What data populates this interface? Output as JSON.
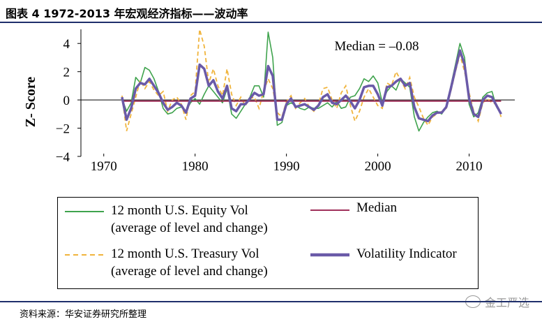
{
  "title": "图表 4 1972-2013 年宏观经济指标——波动率",
  "source": "资料来源：华安证券研究所整理",
  "watermark": "金工严选",
  "colors": {
    "equity": "#3fa34d",
    "treasury": "#f0b43c",
    "median": "#a0305a",
    "indicator": "#6a5aa8",
    "rule": "#1f2f6b"
  },
  "chart_data": {
    "type": "line",
    "title": "1972-2013 年宏观经济指标——波动率",
    "xlabel": "",
    "ylabel": "Z- Score",
    "xlim": [
      1967.5,
      2015
    ],
    "ylim": [
      -4,
      5
    ],
    "xticks": [
      1970,
      1980,
      1990,
      2000,
      2010
    ],
    "yticks": [
      -4,
      -2,
      0,
      2,
      4
    ],
    "ytick_labels": [
      "−4",
      "−2",
      "0",
      "2",
      "4"
    ],
    "annotation": "Median = –0.08",
    "median_value": -0.08,
    "series": [
      {
        "name": "12 month U.S. Equity Vol (average of level and change)",
        "style": "solid-thin",
        "points": [
          [
            1972,
            0.1
          ],
          [
            1972.5,
            -0.8
          ],
          [
            1973,
            -0.2
          ],
          [
            1973.5,
            1.6
          ],
          [
            1974,
            1.2
          ],
          [
            1974.5,
            2.3
          ],
          [
            1975,
            2.1
          ],
          [
            1975.5,
            1.5
          ],
          [
            1976,
            0.6
          ],
          [
            1976.5,
            -0.6
          ],
          [
            1977,
            -1.0
          ],
          [
            1977.5,
            -0.9
          ],
          [
            1978,
            -0.6
          ],
          [
            1978.5,
            -0.5
          ],
          [
            1979,
            -0.8
          ],
          [
            1979.5,
            -0.2
          ],
          [
            1980,
            0.1
          ],
          [
            1980.5,
            -0.3
          ],
          [
            1981,
            0.4
          ],
          [
            1981.5,
            1.0
          ],
          [
            1982,
            0.6
          ],
          [
            1982.5,
            0.2
          ],
          [
            1983,
            -0.2
          ],
          [
            1983.5,
            0.8
          ],
          [
            1984,
            -1.0
          ],
          [
            1984.5,
            -1.3
          ],
          [
            1985,
            -0.8
          ],
          [
            1985.5,
            -0.3
          ],
          [
            1986,
            0.2
          ],
          [
            1986.5,
            1.0
          ],
          [
            1987,
            1.0
          ],
          [
            1987.5,
            0.2
          ],
          [
            1988,
            4.8
          ],
          [
            1988.5,
            3.0
          ],
          [
            1989,
            -1.8
          ],
          [
            1989.5,
            -1.6
          ],
          [
            1990,
            -0.4
          ],
          [
            1990.5,
            -0.2
          ],
          [
            1991,
            -0.4
          ],
          [
            1991.5,
            -0.6
          ],
          [
            1992,
            -0.7
          ],
          [
            1992.5,
            -0.5
          ],
          [
            1993,
            -0.6
          ],
          [
            1993.5,
            -0.6
          ],
          [
            1994,
            -0.4
          ],
          [
            1994.5,
            -0.2
          ],
          [
            1995,
            -0.5
          ],
          [
            1995.5,
            -0.1
          ],
          [
            1996,
            -0.6
          ],
          [
            1996.5,
            -0.5
          ],
          [
            1997,
            0.2
          ],
          [
            1997.5,
            0.3
          ],
          [
            1998,
            0.8
          ],
          [
            1998.5,
            1.5
          ],
          [
            1999,
            1.3
          ],
          [
            1999.5,
            1.7
          ],
          [
            2000,
            1.2
          ],
          [
            2000.5,
            -0.2
          ],
          [
            2001,
            0.6
          ],
          [
            2001.5,
            1.0
          ],
          [
            2002,
            0.7
          ],
          [
            2002.5,
            1.5
          ],
          [
            2003,
            1.2
          ],
          [
            2003.5,
            0.9
          ],
          [
            2004,
            -1.2
          ],
          [
            2004.5,
            -2.2
          ],
          [
            2005,
            -1.6
          ],
          [
            2005.5,
            -1.2
          ],
          [
            2006,
            -0.9
          ],
          [
            2006.5,
            -0.8
          ],
          [
            2007,
            -1.0
          ],
          [
            2007.5,
            -0.5
          ],
          [
            2008,
            1.0
          ],
          [
            2008.5,
            2.5
          ],
          [
            2009,
            4.0
          ],
          [
            2009.5,
            3.0
          ],
          [
            2010,
            -0.3
          ],
          [
            2010.5,
            -1.2
          ],
          [
            2011,
            -0.9
          ],
          [
            2011.5,
            0.2
          ],
          [
            2012,
            0.5
          ],
          [
            2012.5,
            0.6
          ],
          [
            2013,
            -0.5
          ],
          [
            2013.5,
            -1.0
          ]
        ]
      },
      {
        "name": "12 month U.S. Treasury Vol (average of level and change)",
        "style": "dashed",
        "points": [
          [
            1972,
            0.3
          ],
          [
            1972.5,
            -2.2
          ],
          [
            1973,
            -1.0
          ],
          [
            1973.5,
            0.2
          ],
          [
            1974,
            1.4
          ],
          [
            1974.5,
            0.8
          ],
          [
            1975,
            1.3
          ],
          [
            1975.5,
            0.7
          ],
          [
            1976,
            0.3
          ],
          [
            1976.5,
            0.6
          ],
          [
            1977,
            -0.8
          ],
          [
            1977.5,
            0.0
          ],
          [
            1978,
            0.2
          ],
          [
            1978.5,
            -0.3
          ],
          [
            1979,
            -1.4
          ],
          [
            1979.5,
            0.3
          ],
          [
            1980,
            0.6
          ],
          [
            1980.5,
            5.0
          ],
          [
            1981,
            3.8
          ],
          [
            1981.5,
            1.2
          ],
          [
            1982,
            2.2
          ],
          [
            1982.5,
            1.0
          ],
          [
            1983,
            0.3
          ],
          [
            1983.5,
            2.2
          ],
          [
            1984,
            0.4
          ],
          [
            1984.5,
            -0.4
          ],
          [
            1985,
            0.2
          ],
          [
            1985.5,
            -0.4
          ],
          [
            1986,
            0.1
          ],
          [
            1986.5,
            0.2
          ],
          [
            1987,
            -0.6
          ],
          [
            1987.5,
            0.6
          ],
          [
            1988,
            1.5
          ],
          [
            1988.5,
            0.8
          ],
          [
            1989,
            -0.9
          ],
          [
            1989.5,
            -1.2
          ],
          [
            1990,
            -0.1
          ],
          [
            1990.5,
            0.3
          ],
          [
            1991,
            -0.6
          ],
          [
            1991.5,
            -0.2
          ],
          [
            1992,
            0.1
          ],
          [
            1992.5,
            -0.5
          ],
          [
            1993,
            -0.8
          ],
          [
            1993.5,
            -0.3
          ],
          [
            1994,
            0.8
          ],
          [
            1994.5,
            0.9
          ],
          [
            1995,
            0.0
          ],
          [
            1995.5,
            -0.6
          ],
          [
            1996,
            0.5
          ],
          [
            1996.5,
            1.0
          ],
          [
            1997,
            -0.4
          ],
          [
            1997.5,
            -1.5
          ],
          [
            1998,
            -0.8
          ],
          [
            1998.5,
            0.2
          ],
          [
            1999,
            0.8
          ],
          [
            1999.5,
            0.2
          ],
          [
            2000,
            -0.4
          ],
          [
            2000.5,
            -0.6
          ],
          [
            2001,
            1.2
          ],
          [
            2001.5,
            1.0
          ],
          [
            2002,
            2.0
          ],
          [
            2002.5,
            1.4
          ],
          [
            2003,
            0.8
          ],
          [
            2003.5,
            1.6
          ],
          [
            2004,
            0.2
          ],
          [
            2004.5,
            -0.5
          ],
          [
            2005,
            -1.3
          ],
          [
            2005.5,
            -1.8
          ],
          [
            2006,
            -1.2
          ],
          [
            2006.5,
            -1.0
          ],
          [
            2007,
            -0.8
          ],
          [
            2007.5,
            -0.6
          ],
          [
            2008,
            0.6
          ],
          [
            2008.5,
            2.0
          ],
          [
            2009,
            3.2
          ],
          [
            2009.5,
            2.0
          ],
          [
            2010,
            0.5
          ],
          [
            2010.5,
            -0.8
          ],
          [
            2011,
            -1.5
          ],
          [
            2011.5,
            -0.2
          ],
          [
            2012,
            0.1
          ],
          [
            2012.5,
            -0.2
          ],
          [
            2013,
            -0.3
          ],
          [
            2013.5,
            -1.2
          ]
        ]
      },
      {
        "name": "Median",
        "style": "median",
        "points": [
          [
            1972,
            -0.08
          ],
          [
            2013.5,
            -0.08
          ]
        ]
      },
      {
        "name": "Volatility Indicator",
        "style": "solid-thick",
        "points": [
          [
            1972,
            0.2
          ],
          [
            1972.5,
            -1.4
          ],
          [
            1973,
            -0.6
          ],
          [
            1973.5,
            0.8
          ],
          [
            1974,
            1.2
          ],
          [
            1974.5,
            1.1
          ],
          [
            1975,
            1.5
          ],
          [
            1975.5,
            1.0
          ],
          [
            1976,
            0.5
          ],
          [
            1976.5,
            -0.2
          ],
          [
            1977,
            -0.7
          ],
          [
            1977.5,
            -0.5
          ],
          [
            1978,
            -0.2
          ],
          [
            1978.5,
            -0.4
          ],
          [
            1979,
            -0.9
          ],
          [
            1979.5,
            0.1
          ],
          [
            1980,
            0.3
          ],
          [
            1980.5,
            2.5
          ],
          [
            1981,
            2.2
          ],
          [
            1981.5,
            1.0
          ],
          [
            1982,
            1.4
          ],
          [
            1982.5,
            0.6
          ],
          [
            1983,
            0.1
          ],
          [
            1983.5,
            1.0
          ],
          [
            1984,
            -0.6
          ],
          [
            1984.5,
            -0.8
          ],
          [
            1985,
            -0.3
          ],
          [
            1985.5,
            -0.3
          ],
          [
            1986,
            0.1
          ],
          [
            1986.5,
            0.5
          ],
          [
            1987,
            0.3
          ],
          [
            1987.5,
            0.4
          ],
          [
            1988,
            2.4
          ],
          [
            1988.5,
            1.7
          ],
          [
            1989,
            -1.4
          ],
          [
            1989.5,
            -1.4
          ],
          [
            1990,
            -0.3
          ],
          [
            1990.5,
            0.1
          ],
          [
            1991,
            -0.5
          ],
          [
            1991.5,
            -0.4
          ],
          [
            1992,
            -0.3
          ],
          [
            1992.5,
            -0.5
          ],
          [
            1993,
            -0.7
          ],
          [
            1993.5,
            -0.4
          ],
          [
            1994,
            0.2
          ],
          [
            1994.5,
            0.4
          ],
          [
            1995,
            -0.2
          ],
          [
            1995.5,
            -0.3
          ],
          [
            1996,
            0.0
          ],
          [
            1996.5,
            0.3
          ],
          [
            1997,
            -0.1
          ],
          [
            1997.5,
            -0.6
          ],
          [
            1998,
            0.0
          ],
          [
            1998.5,
            0.9
          ],
          [
            1999,
            1.0
          ],
          [
            1999.5,
            1.0
          ],
          [
            2000,
            0.4
          ],
          [
            2000.5,
            -0.4
          ],
          [
            2001,
            0.9
          ],
          [
            2001.5,
            1.0
          ],
          [
            2002,
            1.3
          ],
          [
            2002.5,
            1.5
          ],
          [
            2003,
            1.0
          ],
          [
            2003.5,
            1.2
          ],
          [
            2004,
            -0.5
          ],
          [
            2004.5,
            -1.3
          ],
          [
            2005,
            -1.4
          ],
          [
            2005.5,
            -1.5
          ],
          [
            2006,
            -1.1
          ],
          [
            2006.5,
            -0.9
          ],
          [
            2007,
            -0.9
          ],
          [
            2007.5,
            -0.5
          ],
          [
            2008,
            0.8
          ],
          [
            2008.5,
            2.2
          ],
          [
            2009,
            3.5
          ],
          [
            2009.5,
            2.5
          ],
          [
            2010,
            0.1
          ],
          [
            2010.5,
            -1.0
          ],
          [
            2011,
            -1.2
          ],
          [
            2011.5,
            0.0
          ],
          [
            2012,
            0.3
          ],
          [
            2012.5,
            0.2
          ],
          [
            2013,
            -0.4
          ],
          [
            2013.5,
            -1.0
          ]
        ]
      }
    ],
    "legend": {
      "position": "bottom",
      "equity_line1": "12 month U.S. Equity Vol",
      "equity_line2": "(average of level and change)",
      "treasury_line1": "12 month U.S. Treasury Vol",
      "treasury_line2": "(average of level and change)",
      "median": "Median",
      "indicator": "Volatility Indicator"
    }
  }
}
